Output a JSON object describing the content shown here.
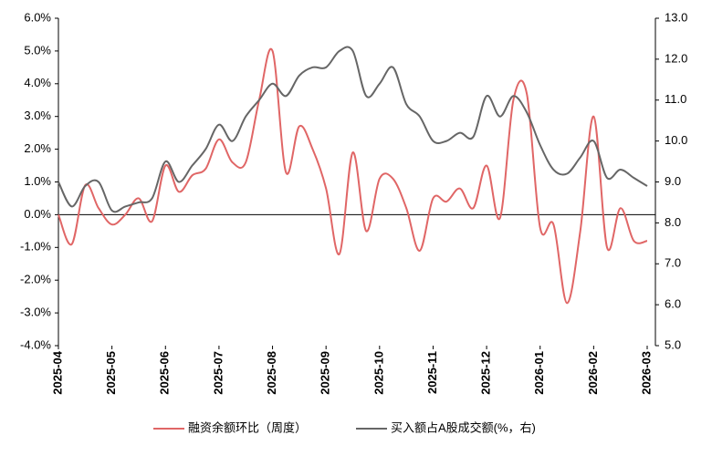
{
  "chart_data": {
    "type": "line",
    "categories": [
      "2025-04",
      null,
      null,
      null,
      "2025-05",
      null,
      null,
      null,
      "2025-06",
      null,
      null,
      null,
      "2025-07",
      null,
      null,
      null,
      "2025-08",
      null,
      null,
      null,
      "2025-09",
      null,
      null,
      null,
      "2025-10",
      null,
      null,
      null,
      "2025-11",
      null,
      null,
      null,
      "2025-12",
      null,
      null,
      null,
      "2026-01",
      null,
      null,
      null,
      "2026-02",
      null,
      null,
      null,
      "2026-03"
    ],
    "series": [
      {
        "name": "融资余额环比（周度）",
        "color": "#e06666",
        "axis": "y",
        "values": [
          0.0,
          -0.9,
          0.9,
          0.2,
          -0.3,
          0.0,
          0.5,
          -0.2,
          1.5,
          0.7,
          1.2,
          1.4,
          2.3,
          1.6,
          1.6,
          3.5,
          5.0,
          1.3,
          2.7,
          2.0,
          0.8,
          -1.2,
          1.9,
          -0.5,
          1.1,
          1.1,
          0.2,
          -1.1,
          0.5,
          0.4,
          0.8,
          0.2,
          1.5,
          -0.1,
          3.5,
          3.7,
          -0.4,
          -0.3,
          -2.7,
          -0.5,
          3.0,
          -1.0,
          0.2,
          -0.8,
          -0.8
        ]
      },
      {
        "name": "买入额占A股成交额(%，右)",
        "color": "#666666",
        "axis": "y2",
        "values": [
          9.0,
          8.4,
          8.9,
          9.0,
          8.3,
          8.4,
          8.5,
          8.6,
          9.5,
          9.0,
          9.4,
          9.8,
          10.4,
          10.0,
          10.6,
          11.0,
          11.4,
          11.1,
          11.6,
          11.8,
          11.8,
          12.2,
          12.2,
          11.1,
          11.4,
          11.8,
          10.9,
          10.6,
          10.0,
          10.0,
          10.2,
          10.1,
          11.1,
          10.6,
          11.1,
          10.7,
          9.9,
          9.3,
          9.2,
          9.6,
          10.0,
          9.1,
          9.3,
          9.1,
          8.9
        ]
      }
    ],
    "ylim": [
      -4,
      6
    ],
    "yticks": [
      {
        "value": -4,
        "label": "-4.0%"
      },
      {
        "value": -3,
        "label": "-3.0%"
      },
      {
        "value": -2,
        "label": "-2.0%"
      },
      {
        "value": -1,
        "label": "-1.0%"
      },
      {
        "value": 0,
        "label": "0.0%"
      },
      {
        "value": 1,
        "label": "1.0%"
      },
      {
        "value": 2,
        "label": "2.0%"
      },
      {
        "value": 3,
        "label": "3.0%"
      },
      {
        "value": 4,
        "label": "4.0%"
      },
      {
        "value": 5,
        "label": "5.0%"
      },
      {
        "value": 6,
        "label": "6.0%"
      }
    ],
    "y2lim": [
      5,
      13
    ],
    "y2ticks": [
      {
        "value": 5,
        "label": "5.0"
      },
      {
        "value": 6,
        "label": "6.0"
      },
      {
        "value": 7,
        "label": "7.0"
      },
      {
        "value": 8,
        "label": "8.0"
      },
      {
        "value": 9,
        "label": "9.0"
      },
      {
        "value": 10,
        "label": "10.0"
      },
      {
        "value": 11,
        "label": "11.0"
      },
      {
        "value": 12,
        "label": "12.0"
      },
      {
        "value": 13,
        "label": "13.0"
      }
    ],
    "legend": "bottom"
  }
}
